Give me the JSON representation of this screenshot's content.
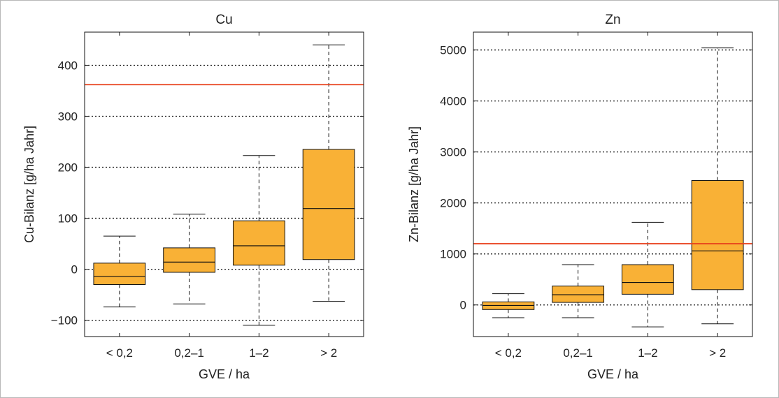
{
  "chart_data": [
    {
      "type": "box",
      "title": "Cu",
      "xlabel": "GVE / ha",
      "ylabel": "Cu-Bilanz [g/ha Jahr]",
      "categories": [
        "< 0,2",
        "0,2–1",
        "1–2",
        "> 2"
      ],
      "ylim": [
        -132,
        465
      ],
      "yticks": [
        -100,
        0,
        100,
        200,
        300,
        400
      ],
      "ytick_labels": [
        "−100",
        "0",
        "100",
        "200",
        "300",
        "400"
      ],
      "grid": "horizontal dotted",
      "reference_line": 362,
      "box_color": "#f9b136",
      "line_color": "#e8411c",
      "boxes": [
        {
          "min": -74,
          "q1": -30,
          "median": -14,
          "q3": 12,
          "max": 65
        },
        {
          "min": -68,
          "q1": -6,
          "median": 14,
          "q3": 42,
          "max": 108
        },
        {
          "min": -110,
          "q1": 8,
          "median": 46,
          "q3": 95,
          "max": 223
        },
        {
          "min": -63,
          "q1": 19,
          "median": 119,
          "q3": 235,
          "max": 440
        }
      ]
    },
    {
      "type": "box",
      "title": "Zn",
      "xlabel": "GVE / ha",
      "ylabel": "Zn-Bilanz [g/ha Jahr]",
      "categories": [
        "< 0,2",
        "0,2–1",
        "1–2",
        "> 2"
      ],
      "ylim": [
        -620,
        5350
      ],
      "yticks": [
        0,
        1000,
        2000,
        3000,
        4000,
        5000
      ],
      "ytick_labels": [
        "0",
        "1000",
        "2000",
        "3000",
        "4000",
        "5000"
      ],
      "grid": "horizontal dotted",
      "reference_line": 1200,
      "box_color": "#f9b136",
      "line_color": "#e8411c",
      "boxes": [
        {
          "min": -250,
          "q1": -90,
          "median": -10,
          "q3": 60,
          "max": 220
        },
        {
          "min": -250,
          "q1": 50,
          "median": 200,
          "q3": 370,
          "max": 790
        },
        {
          "min": -430,
          "q1": 210,
          "median": 440,
          "q3": 790,
          "max": 1620
        },
        {
          "min": -370,
          "q1": 300,
          "median": 1060,
          "q3": 2440,
          "max": 5040
        }
      ]
    }
  ]
}
